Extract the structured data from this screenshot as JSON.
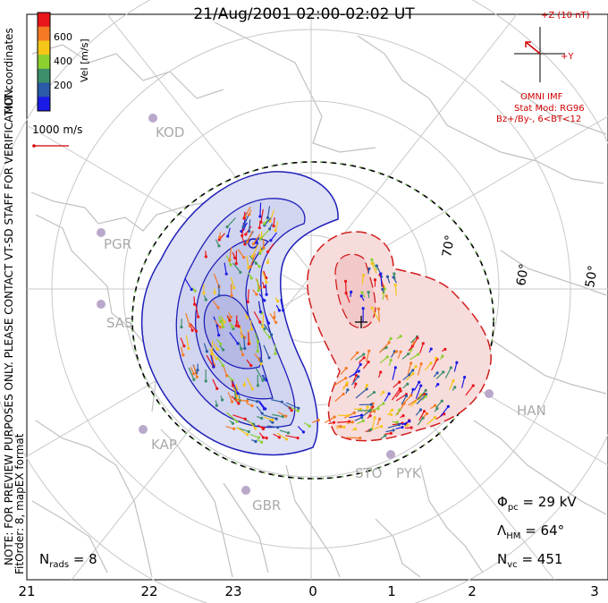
{
  "title": "21/Aug/2001 02:00-02:02 UT",
  "side_labels": {
    "coords": "MLT coordinates",
    "note": "NOTE: FOR PREVIEW PURPOSES ONLY. PLEASE CONTACT VT-SD STAFF FOR VERIFICATION.",
    "fit": "FitOrder: 8, mapEX format"
  },
  "velocity_scale": {
    "label": "Vel [m/s]",
    "ticks": [
      "600",
      "400",
      "200"
    ],
    "colors": [
      "#e8161b",
      "#f47a23",
      "#f5c518",
      "#8ccf2f",
      "#3b8f6a",
      "#2a5aa8",
      "#1a1ae6"
    ],
    "reference": "1000 m/s"
  },
  "imf_panel": {
    "z_label": "+Z (10 nT)",
    "y_label": "+Y",
    "source": "OMNI IMF",
    "model": "Stat Mod: RG96",
    "condition": "Bz+/By-, 6<BT<12",
    "color": "#d00000"
  },
  "latitude_labels": [
    "70°",
    "60°",
    "50°"
  ],
  "radars": [
    "KOD",
    "PGR",
    "SAS",
    "KAP",
    "GBR",
    "STO",
    "PYK",
    "HAN"
  ],
  "stats": {
    "phi": {
      "symbol": "Φ",
      "sub": "pc",
      "value": "= 29 kV"
    },
    "lambda": {
      "symbol": "Λ",
      "sub": "HM",
      "value": "= 64°"
    },
    "nvc": {
      "symbol": "N",
      "sub": "vc",
      "value": "= 451"
    },
    "nrads": {
      "symbol": "N",
      "sub": "rads",
      "value": "= 8"
    }
  },
  "mlt_axis": [
    "21",
    "22",
    "23",
    "0",
    "1",
    "2",
    "3"
  ],
  "colors": {
    "negative_cell_fill": "#dfe1f4",
    "negative_cell_line": "#1f1fb8",
    "positive_cell_fill": "#f7dcdc",
    "positive_cell_line": "#d11d1d",
    "coastline": "#c0c0c0",
    "grid": "#c8c8c8",
    "heppner_maynard": "#000000"
  }
}
